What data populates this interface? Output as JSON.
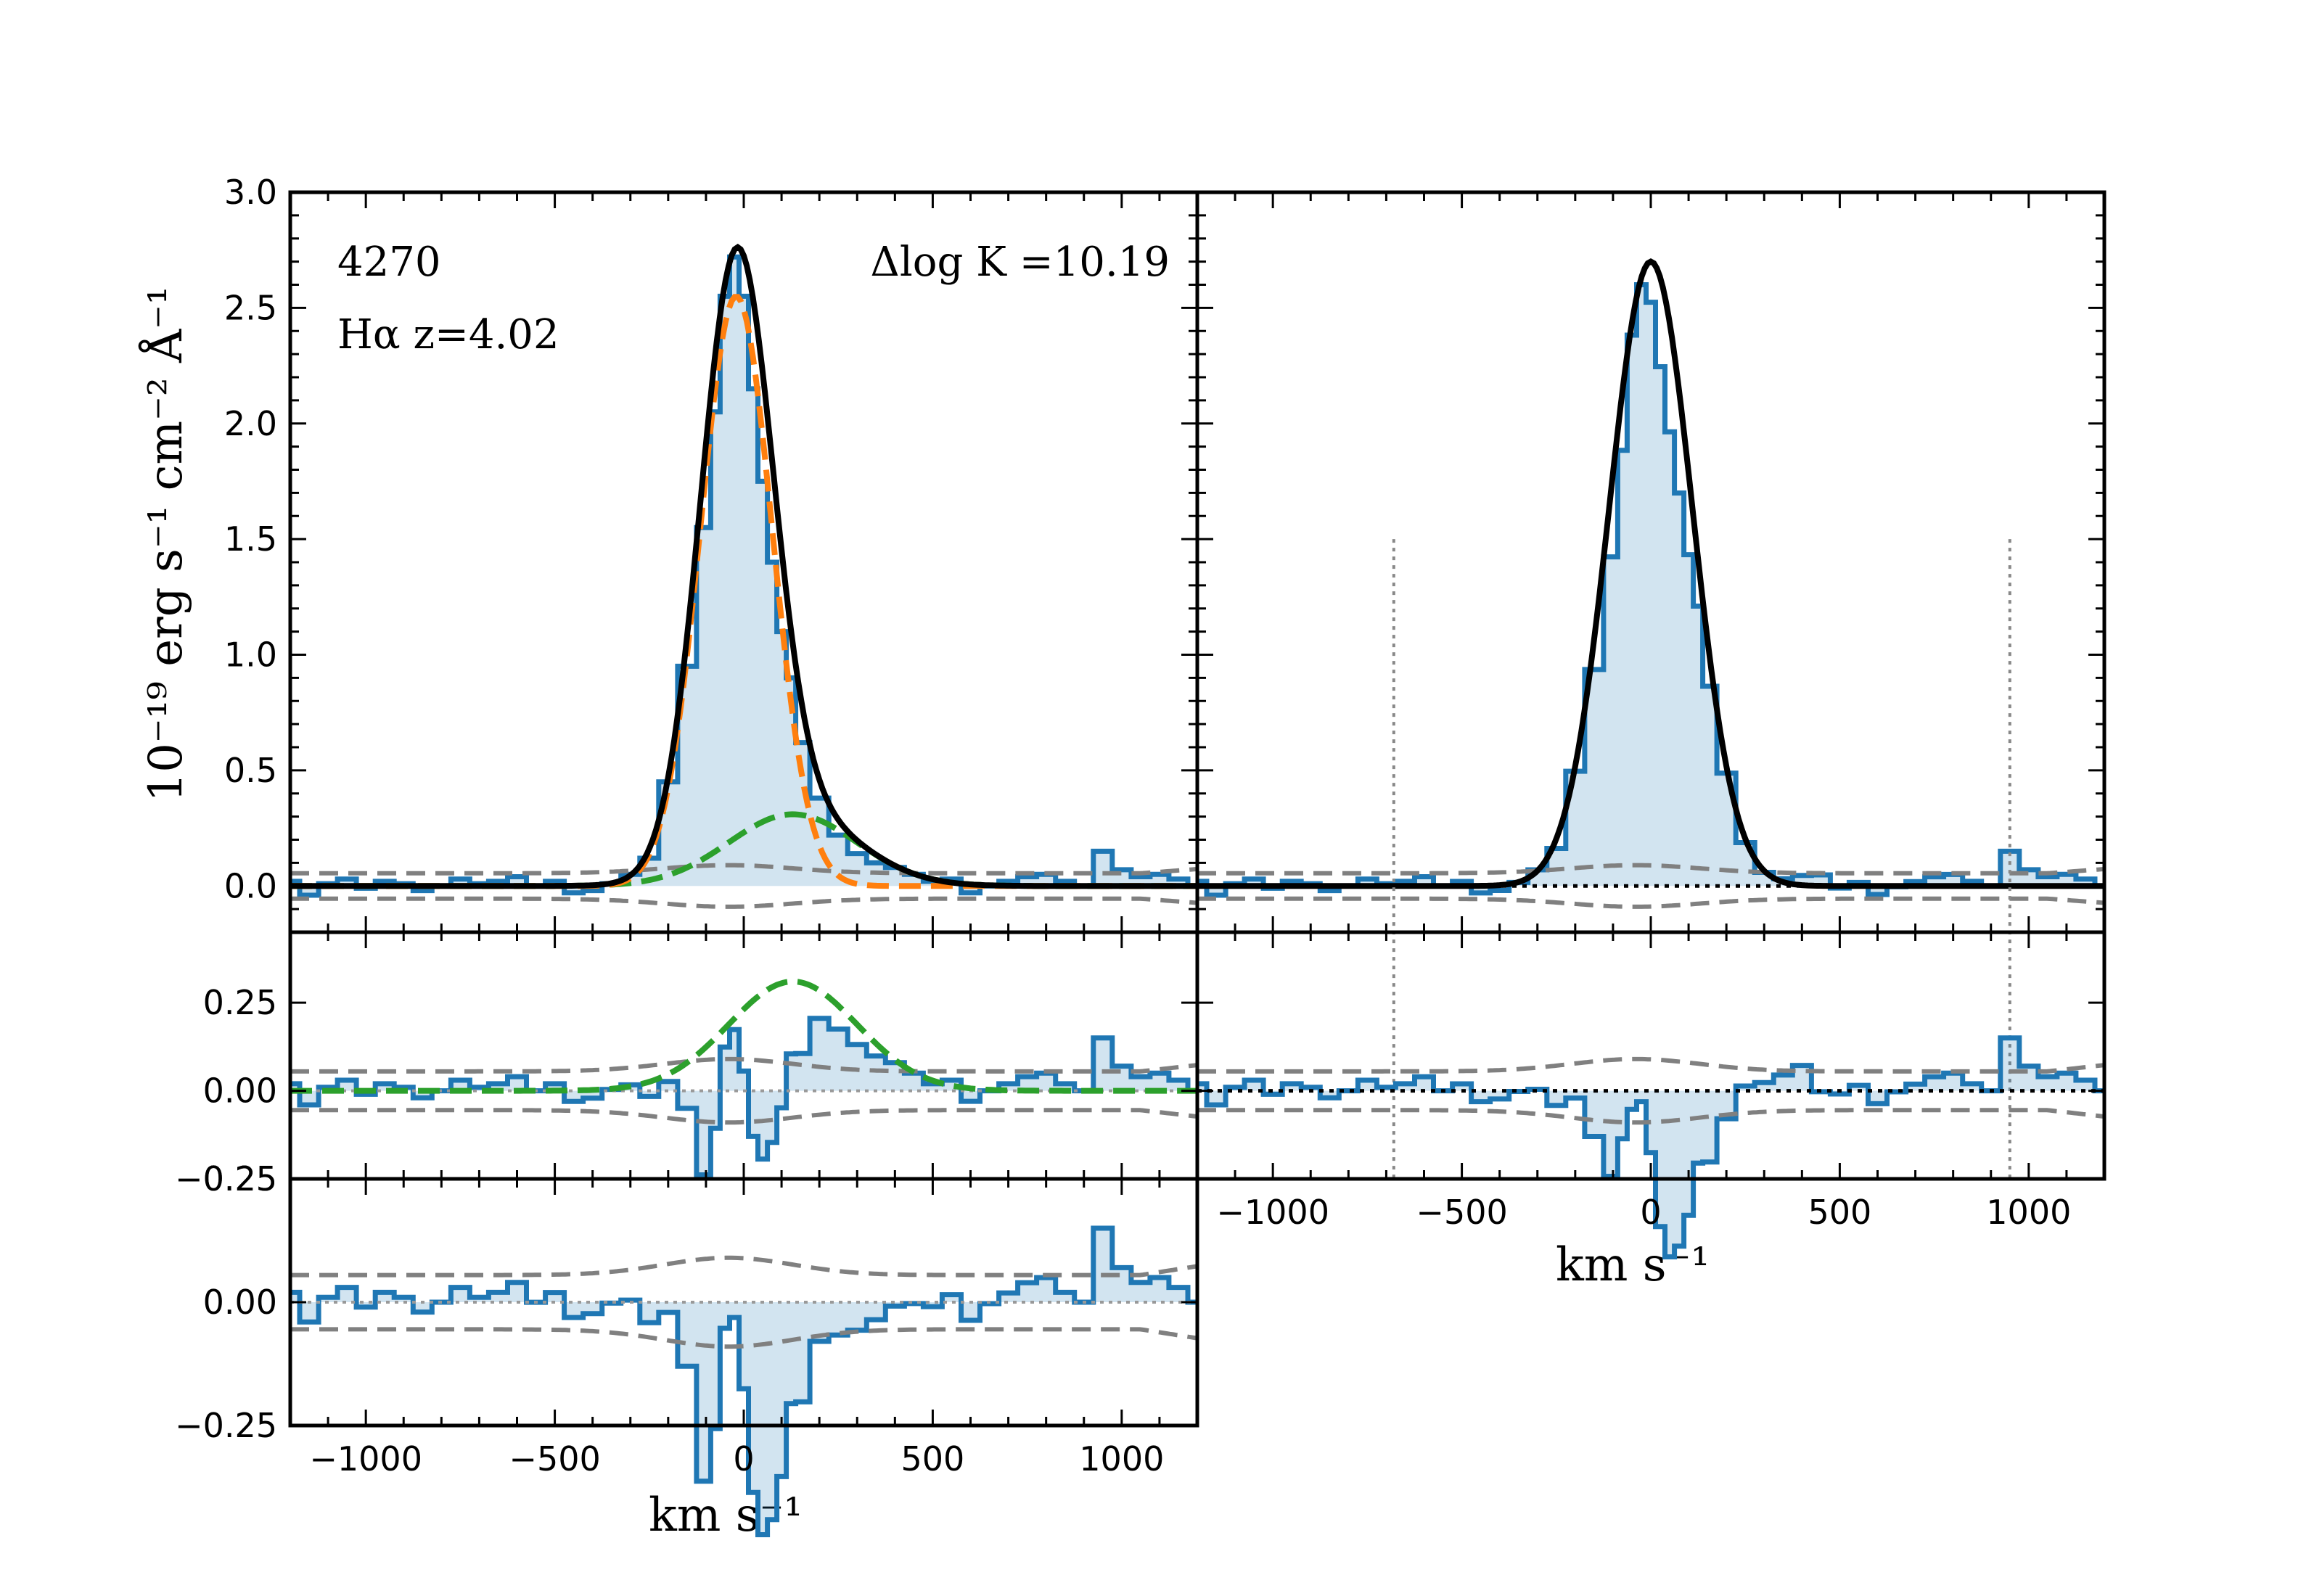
{
  "chart_data": [
    {
      "type": "line",
      "panel": "top-left",
      "object_id": "4270",
      "line_label": "Hα z=4.02",
      "delta_logK": "Δlog K =10.19",
      "ylabel": "10⁻¹⁹ erg s⁻¹ cm⁻² Å⁻¹",
      "xlim": [
        -1200,
        1200
      ],
      "ylim": [
        -0.2,
        3.0
      ],
      "yticks": [
        "0.0",
        "0.5",
        "1.0",
        "1.5",
        "2.0",
        "2.5",
        "3.0"
      ],
      "series": [
        {
          "name": "data (step)",
          "color": "#1f77b4",
          "style": "step",
          "x": [
            -1200,
            -1150,
            -1100,
            -1050,
            -1000,
            -950,
            -900,
            -850,
            -800,
            -750,
            -700,
            -650,
            -600,
            -550,
            -500,
            -450,
            -400,
            -350,
            -300,
            -250,
            -200,
            -150,
            -100,
            -75,
            -50,
            -25,
            0,
            25,
            50,
            75,
            100,
            125,
            150,
            200,
            250,
            300,
            350,
            400,
            450,
            500,
            550,
            600,
            650,
            700,
            750,
            800,
            850,
            900,
            950,
            1000,
            1050,
            1100,
            1150,
            1200
          ],
          "y": [
            0.02,
            -0.04,
            0.01,
            0.03,
            -0.01,
            0.02,
            0.01,
            -0.02,
            0.0,
            0.03,
            0.01,
            0.02,
            0.04,
            0.0,
            0.02,
            -0.03,
            -0.02,
            0.01,
            0.05,
            0.12,
            0.45,
            0.95,
            1.55,
            2.05,
            2.55,
            2.72,
            2.55,
            2.15,
            1.75,
            1.4,
            1.1,
            0.9,
            0.62,
            0.38,
            0.22,
            0.14,
            0.1,
            0.08,
            0.05,
            0.02,
            0.03,
            -0.03,
            0.0,
            0.02,
            0.04,
            0.05,
            0.02,
            0.0,
            0.15,
            0.07,
            0.04,
            0.05,
            0.03,
            0.0
          ]
        },
        {
          "name": "total model",
          "color": "#000000",
          "style": "solid"
        },
        {
          "name": "narrow component",
          "color": "#ff7f0e",
          "style": "dashed",
          "amplitude": 2.55,
          "center": -20,
          "sigma": 95
        },
        {
          "name": "broad component",
          "color": "#2ca02c",
          "style": "dashed",
          "amplitude": 0.31,
          "center": 130,
          "sigma": 170
        },
        {
          "name": "error envelope",
          "color": "#808080",
          "style": "dashed"
        }
      ]
    },
    {
      "type": "line",
      "panel": "top-right",
      "xlim": [
        -1200,
        1200
      ],
      "ylim": [
        -0.2,
        3.0
      ],
      "markers_x": [
        -680,
        950
      ],
      "series": [
        {
          "name": "data (step)",
          "color": "#1f77b4",
          "style": "step"
        },
        {
          "name": "model",
          "color": "#000000",
          "style": "solid",
          "amplitude": 2.7,
          "center": 0,
          "sigma": 110
        },
        {
          "name": "error envelope",
          "color": "#808080",
          "style": "dashed"
        }
      ]
    },
    {
      "type": "line",
      "panel": "middle-left",
      "xlim": [
        -1200,
        1200
      ],
      "ylim": [
        -0.25,
        0.45
      ],
      "yticks": [
        "−0.25",
        "0.00",
        "0.25"
      ],
      "series": [
        {
          "name": "residual + broad",
          "color": "#1f77b4",
          "style": "step"
        },
        {
          "name": "broad component",
          "color": "#2ca02c",
          "style": "dashed",
          "amplitude": 0.31,
          "center": 130,
          "sigma": 170
        }
      ]
    },
    {
      "type": "line",
      "panel": "middle-right",
      "xlim": [
        -1200,
        1200
      ],
      "ylim": [
        -0.25,
        0.45
      ],
      "xlabel": "km s⁻¹",
      "xticks": [
        "−1000",
        "−500",
        "0",
        "500",
        "1000"
      ],
      "series": [
        {
          "name": "residual",
          "color": "#1f77b4",
          "style": "step"
        }
      ]
    },
    {
      "type": "line",
      "panel": "bottom-left",
      "xlim": [
        -1200,
        1200
      ],
      "ylim": [
        -0.25,
        0.25
      ],
      "yticks": [
        "−0.25",
        "0.00",
        "0.25"
      ],
      "xlabel": "km s⁻¹",
      "xticks": [
        "−1000",
        "−500",
        "0",
        "500",
        "1000"
      ],
      "series": [
        {
          "name": "residual",
          "color": "#1f77b4",
          "style": "step"
        }
      ]
    }
  ],
  "labels": {
    "object_id": "4270",
    "line_label": "Hα z=4.02",
    "delta_logK": "Δlog K =10.19",
    "ylabel": "10⁻¹⁹ erg s⁻¹ cm⁻² Å⁻¹",
    "xlabel_left": "km s⁻¹",
    "xlabel_right": "km s⁻¹"
  }
}
